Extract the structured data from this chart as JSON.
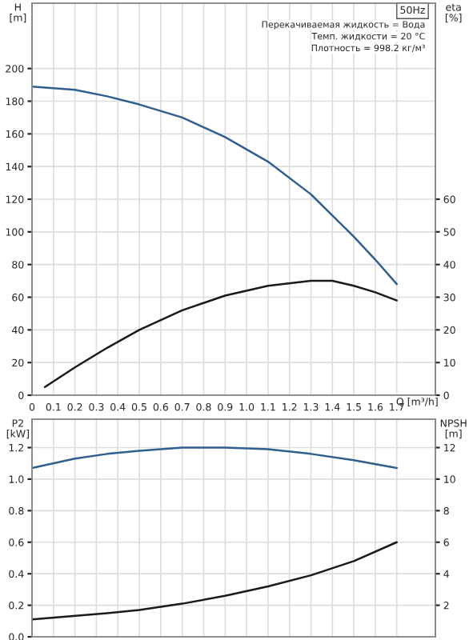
{
  "chart_data": [
    {
      "type": "line",
      "title": "50Hz",
      "annotations": [
        "Перекачиваемая жидкость = Вода",
        "Темп. жидкости = 20 °C",
        "Плотность = 998.2 кг/м³"
      ],
      "xlabel": "Q [m³/h]",
      "ylabel": "H\n[m]",
      "y2label": "eta\n[%]",
      "xlim": [
        0,
        1.88
      ],
      "xticks": [
        0,
        0.1,
        0.2,
        0.3,
        0.4,
        0.5,
        0.6,
        0.7,
        0.8,
        0.9,
        {
          "value": 1,
          "label": "1.0"
        },
        1.1,
        1.2,
        1.3,
        1.4,
        1.5,
        1.6,
        1.7
      ],
      "ylim": [
        0,
        240
      ],
      "yticks": [
        0,
        20,
        40,
        60,
        80,
        100,
        120,
        140,
        160,
        180,
        200
      ],
      "y2lim": [
        0,
        120
      ],
      "y2ticks": [
        0,
        10,
        20,
        30,
        40,
        50,
        60
      ],
      "grid": true,
      "legend": false,
      "marker": "none",
      "line_style": "solid",
      "series": [
        {
          "color": "#2f5f8f",
          "x": [
            0,
            0.1,
            0.2,
            0.35,
            0.5,
            0.7,
            0.9,
            1.1,
            1.3,
            1.5,
            1.6,
            1.7
          ],
          "values": [
            189,
            188,
            187,
            183,
            178,
            170,
            158,
            143,
            123,
            97,
            83,
            68
          ]
        },
        {
          "color": "#1a1a1a",
          "axis": "y2",
          "x": [
            0.06,
            0.2,
            0.35,
            0.5,
            0.7,
            0.9,
            1.1,
            1.3,
            1.4,
            1.5,
            1.6,
            1.7
          ],
          "values": [
            2.5,
            8.5,
            14.5,
            20,
            26,
            30.5,
            33.5,
            35,
            35,
            33.5,
            31.5,
            29
          ]
        }
      ]
    },
    {
      "type": "line",
      "ylabel": "P2\n[kW]",
      "y2label": "NPSH\n[m]",
      "xlim": [
        0,
        1.88
      ],
      "xticks": [
        0,
        0.1,
        0.2,
        0.3,
        0.4,
        0.5,
        0.6,
        0.7,
        0.8,
        0.9,
        1,
        1.1,
        1.2,
        1.3,
        1.4,
        1.5,
        1.6,
        1.7
      ],
      "ylim": [
        0,
        1.38
      ],
      "yticks": [
        {
          "value": 0,
          "label": "0.0"
        },
        0.2,
        0.4,
        0.6,
        0.8,
        {
          "value": 1,
          "label": "1.0"
        },
        1.2
      ],
      "y2lim": [
        0,
        13.8
      ],
      "y2ticks": [
        2,
        4,
        6,
        8,
        10,
        12
      ],
      "tick_labels": "y",
      "grid": true,
      "legend": false,
      "marker": "none",
      "line_style": "solid",
      "series": [
        {
          "color": "#2f5f8f",
          "x": [
            0,
            0.2,
            0.35,
            0.5,
            0.7,
            0.9,
            1.1,
            1.3,
            1.5,
            1.7
          ],
          "values": [
            1.07,
            1.13,
            1.16,
            1.18,
            1.2,
            1.2,
            1.19,
            1.16,
            1.12,
            1.07
          ]
        },
        {
          "color": "#1a1a1a",
          "axis": "y2",
          "x": [
            0,
            0.35,
            0.5,
            0.7,
            0.9,
            1.1,
            1.3,
            1.5,
            1.7
          ],
          "values": [
            1.1,
            1.5,
            1.7,
            2.1,
            2.6,
            3.2,
            3.9,
            4.8,
            6.0
          ]
        }
      ]
    }
  ]
}
